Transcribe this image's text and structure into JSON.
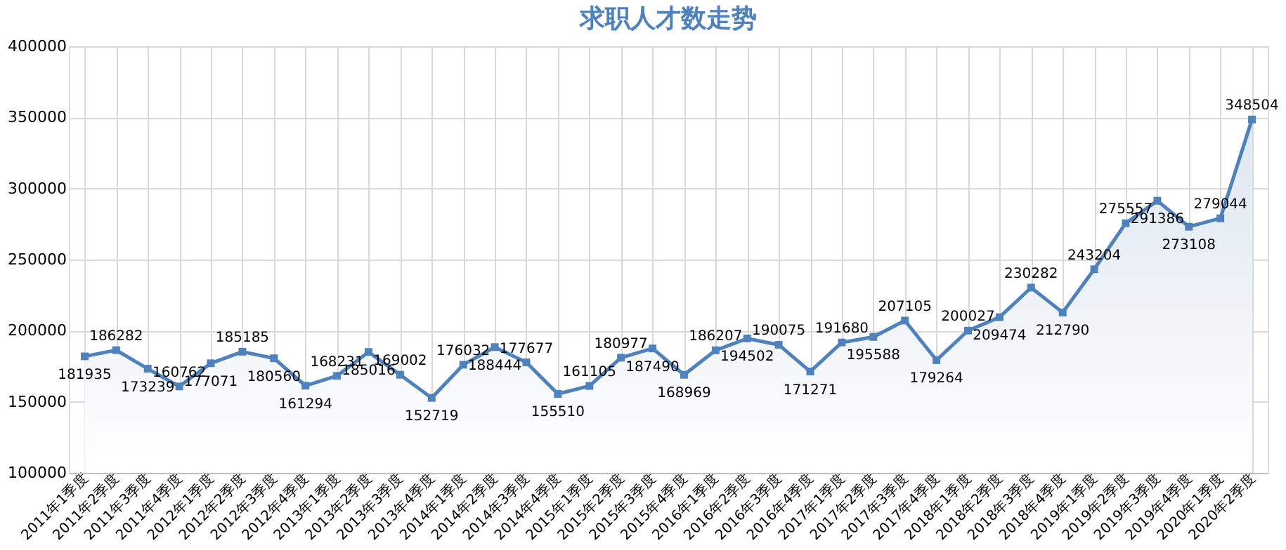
{
  "chart_data": {
    "type": "area",
    "title": "求职人才数走势",
    "categories": [
      "2011年1季度",
      "2011年2季度",
      "2011年3季度",
      "2011年4季度",
      "2012年1季度",
      "2012年2季度",
      "2012年3季度",
      "2012年4季度",
      "2013年1季度",
      "2013年2季度",
      "2013年3季度",
      "2013年4季度",
      "2014年1季度",
      "2014年2季度",
      "2014年3季度",
      "2014年4季度",
      "2015年1季度",
      "2015年2季度",
      "2015年3季度",
      "2015年4季度",
      "2016年1季度",
      "2016年2季度",
      "2016年3季度",
      "2016年4季度",
      "2017年1季度",
      "2017年2季度",
      "2017年3季度",
      "2017年4季度",
      "2018年1季度",
      "2018年2季度",
      "2018年3季度",
      "2018年4季度",
      "2019年1季度",
      "2019年2季度",
      "2019年3季度",
      "2019年4季度",
      "2020年1季度",
      "2020年2季度"
    ],
    "values": [
      181935,
      186282,
      173239,
      160762,
      177071,
      185185,
      180560,
      161294,
      168231,
      185016,
      169002,
      152719,
      176032,
      188444,
      177677,
      155510,
      161105,
      180977,
      187490,
      168969,
      186207,
      194502,
      190075,
      171271,
      191680,
      195588,
      207105,
      179264,
      200027,
      209474,
      230282,
      212790,
      243204,
      275557,
      291386,
      273108,
      279044,
      348504
    ],
    "color": "#4f81bd",
    "ylim": [
      100000,
      400000
    ],
    "yticks": [
      100000,
      150000,
      200000,
      250000,
      300000,
      350000,
      400000
    ],
    "grid": true,
    "marker": "square",
    "data_labels": true
  }
}
